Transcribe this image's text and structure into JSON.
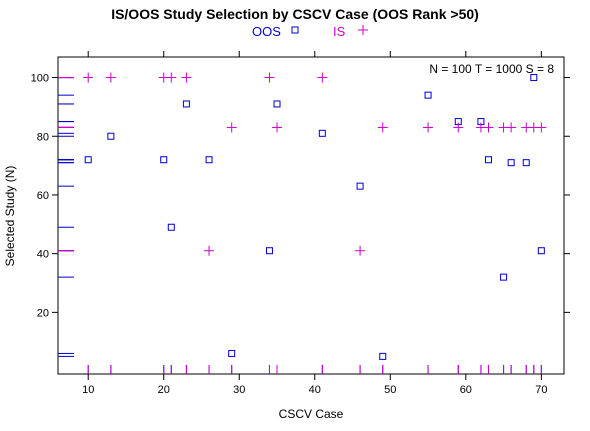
{
  "chart_data": {
    "type": "scatter",
    "title": "IS/OOS Study Selection by CSCV Case (OOS Rank >50)",
    "xlabel": "CSCV Case",
    "ylabel": "Selected Study (N)",
    "xlim": [
      6,
      73
    ],
    "ylim": [
      -1,
      107
    ],
    "xticks": [
      10,
      20,
      30,
      40,
      50,
      60,
      70
    ],
    "yticks": [
      20,
      40,
      60,
      80,
      100
    ],
    "annotation": "N = 100  T = 1000  S = 8",
    "legend_placement": "top-center",
    "grid": false,
    "series": [
      {
        "name": "OOS",
        "marker": "square",
        "color": "#0000cc",
        "x": [
          10,
          13,
          20,
          21,
          23,
          26,
          29,
          34,
          35,
          41,
          46,
          49,
          55,
          59,
          62,
          63,
          65,
          66,
          68,
          69,
          70
        ],
        "y": [
          72,
          80,
          72,
          49,
          91,
          72,
          6,
          41,
          91,
          81,
          63,
          5,
          94,
          85,
          85,
          72,
          32,
          71,
          71,
          100,
          41
        ]
      },
      {
        "name": "IS",
        "marker": "plus",
        "color": "#cc00cc",
        "x": [
          10,
          13,
          20,
          21,
          23,
          26,
          29,
          34,
          35,
          41,
          46,
          49,
          55,
          59,
          62,
          63,
          65,
          66,
          68,
          69,
          70
        ],
        "y": [
          100,
          100,
          100,
          100,
          100,
          41,
          83,
          100,
          83,
          100,
          41,
          83,
          83,
          83,
          83,
          83,
          83,
          83,
          83,
          83,
          83
        ]
      }
    ]
  }
}
